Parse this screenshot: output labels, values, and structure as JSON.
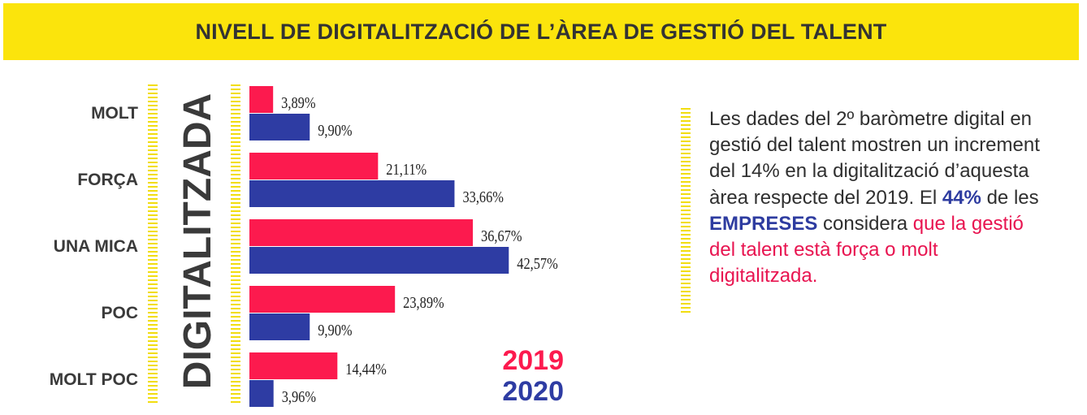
{
  "title": "NIVELL DE DIGITALITZACIÓ DE L’ÀREA DE GESTIÓ DEL TALENT",
  "chart_data": {
    "type": "bar",
    "orientation": "horizontal",
    "axis_title": "DIGITALITZADA",
    "categories": [
      "MOLT",
      "FORÇA",
      "UNA MICA",
      "POC",
      "MOLT POC"
    ],
    "series": [
      {
        "name": "2019",
        "color": "#fc1a4e",
        "values": [
          3.89,
          21.11,
          36.67,
          23.89,
          14.44
        ],
        "labels": [
          "3,89%",
          "21,11%",
          "36,67%",
          "23,89%",
          "14,44%"
        ]
      },
      {
        "name": "2020",
        "color": "#2e3ca3",
        "values": [
          9.9,
          33.66,
          42.57,
          9.9,
          3.96
        ],
        "labels": [
          "9,90%",
          "33,66%",
          "42,57%",
          "9,90%",
          "3,96%"
        ]
      }
    ],
    "grid": false,
    "legend": "bottom-right"
  },
  "side_text": {
    "part1": "Les dades del 2º baròmetre digital en gestió del talent mostren un increment del 14% en la digitalització d’aquesta àrea respecte del 2019. El ",
    "part2": "44%",
    "part3": " de les ",
    "part4": "EMPRESES",
    "part5": " considera ",
    "part6": "que la gestió del talent està força o molt digitalitzada."
  }
}
